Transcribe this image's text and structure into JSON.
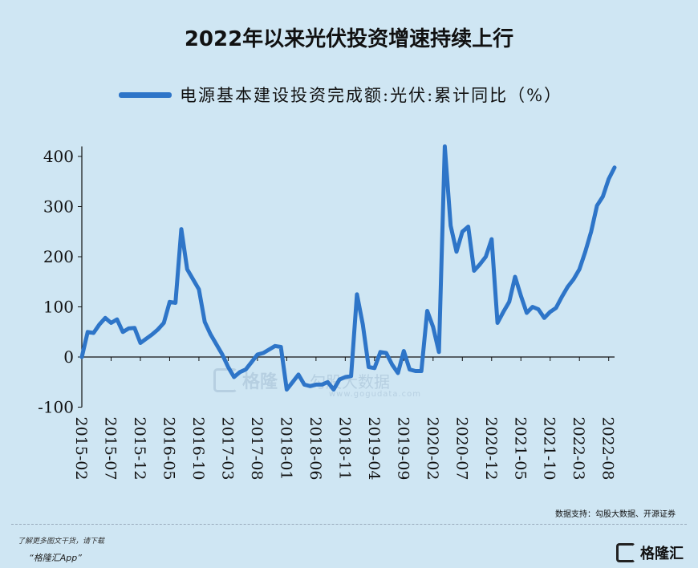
{
  "title": "2022年以来光伏投资增速持续上行",
  "source": "数据支持：勾股大数据、开源证券",
  "footer": {
    "note": "了解更多图文干货，请下载",
    "app": "“格隆汇App”",
    "logo_text": "格隆汇"
  },
  "watermark": {
    "brand": "格隆",
    "brand2": "勾股大数据",
    "url": "www.gogudata.com"
  },
  "chart_data": {
    "type": "line",
    "ylim": [
      -100,
      420
    ],
    "yticks": [
      400,
      300,
      200,
      100,
      0,
      -100
    ],
    "xticks": [
      "2015-02",
      "2015-07",
      "2015-12",
      "2016-05",
      "2016-10",
      "2017-03",
      "2017-08",
      "2018-01",
      "2018-06",
      "2018-11",
      "2019-04",
      "2019-09",
      "2020-02",
      "2020-07",
      "2020-12",
      "2021-05",
      "2021-10",
      "2022-03",
      "2022-08"
    ],
    "grid": false,
    "legend_position": "top",
    "series": [
      {
        "name": "电源基本建设投资完成额:光伏:累计同比（%）",
        "color": "#2e75c8",
        "points": [
          [
            "2015-02",
            0
          ],
          [
            "2015-03",
            50
          ],
          [
            "2015-04",
            48
          ],
          [
            "2015-05",
            65
          ],
          [
            "2015-06",
            78
          ],
          [
            "2015-07",
            68
          ],
          [
            "2015-08",
            75
          ],
          [
            "2015-09",
            50
          ],
          [
            "2015-10",
            57
          ],
          [
            "2015-11",
            58
          ],
          [
            "2015-12",
            28
          ],
          [
            "2016-02",
            45
          ],
          [
            "2016-03",
            55
          ],
          [
            "2016-04",
            68
          ],
          [
            "2016-05",
            110
          ],
          [
            "2016-06",
            108
          ],
          [
            "2016-07",
            255
          ],
          [
            "2016-08",
            175
          ],
          [
            "2016-09",
            155
          ],
          [
            "2016-10",
            135
          ],
          [
            "2016-11",
            70
          ],
          [
            "2016-12",
            45
          ],
          [
            "2017-02",
            5
          ],
          [
            "2017-03",
            -20
          ],
          [
            "2017-04",
            -40
          ],
          [
            "2017-05",
            -30
          ],
          [
            "2017-06",
            -25
          ],
          [
            "2017-07",
            -10
          ],
          [
            "2017-08",
            5
          ],
          [
            "2017-09",
            8
          ],
          [
            "2017-10",
            15
          ],
          [
            "2017-11",
            22
          ],
          [
            "2017-12",
            20
          ],
          [
            "2018-01",
            -65
          ],
          [
            "2018-02",
            -50
          ],
          [
            "2018-03",
            -35
          ],
          [
            "2018-04",
            -55
          ],
          [
            "2018-05",
            -58
          ],
          [
            "2018-06",
            -55
          ],
          [
            "2018-07",
            -55
          ],
          [
            "2018-08",
            -50
          ],
          [
            "2018-09",
            -65
          ],
          [
            "2018-10",
            -45
          ],
          [
            "2018-11",
            -40
          ],
          [
            "2018-12",
            -38
          ],
          [
            "2019-01",
            125
          ],
          [
            "2019-02",
            65
          ],
          [
            "2019-03",
            -20
          ],
          [
            "2019-04",
            -22
          ],
          [
            "2019-05",
            10
          ],
          [
            "2019-06",
            8
          ],
          [
            "2019-07",
            -15
          ],
          [
            "2019-08",
            -32
          ],
          [
            "2019-09",
            12
          ],
          [
            "2019-10",
            -25
          ],
          [
            "2019-11",
            -28
          ],
          [
            "2019-12",
            -28
          ],
          [
            "2020-01",
            92
          ],
          [
            "2020-02",
            60
          ],
          [
            "2020-03",
            10
          ],
          [
            "2020-04",
            420
          ],
          [
            "2020-05",
            262
          ],
          [
            "2020-06",
            210
          ],
          [
            "2020-07",
            250
          ],
          [
            "2020-08",
            260
          ],
          [
            "2020-09",
            172
          ],
          [
            "2020-10",
            185
          ],
          [
            "2020-11",
            200
          ],
          [
            "2020-12",
            235
          ],
          [
            "2021-01",
            68
          ],
          [
            "2021-02",
            90
          ],
          [
            "2021-03",
            110
          ],
          [
            "2021-04",
            160
          ],
          [
            "2021-05",
            122
          ],
          [
            "2021-06",
            88
          ],
          [
            "2021-07",
            100
          ],
          [
            "2021-08",
            95
          ],
          [
            "2021-09",
            78
          ],
          [
            "2021-10",
            90
          ],
          [
            "2021-11",
            98
          ],
          [
            "2021-12",
            120
          ],
          [
            "2022-01",
            140
          ],
          [
            "2022-02",
            155
          ],
          [
            "2022-03",
            175
          ],
          [
            "2022-04",
            210
          ],
          [
            "2022-05",
            250
          ],
          [
            "2022-06",
            302
          ],
          [
            "2022-07",
            320
          ],
          [
            "2022-08",
            355
          ],
          [
            "2022-09",
            378
          ]
        ]
      }
    ]
  }
}
